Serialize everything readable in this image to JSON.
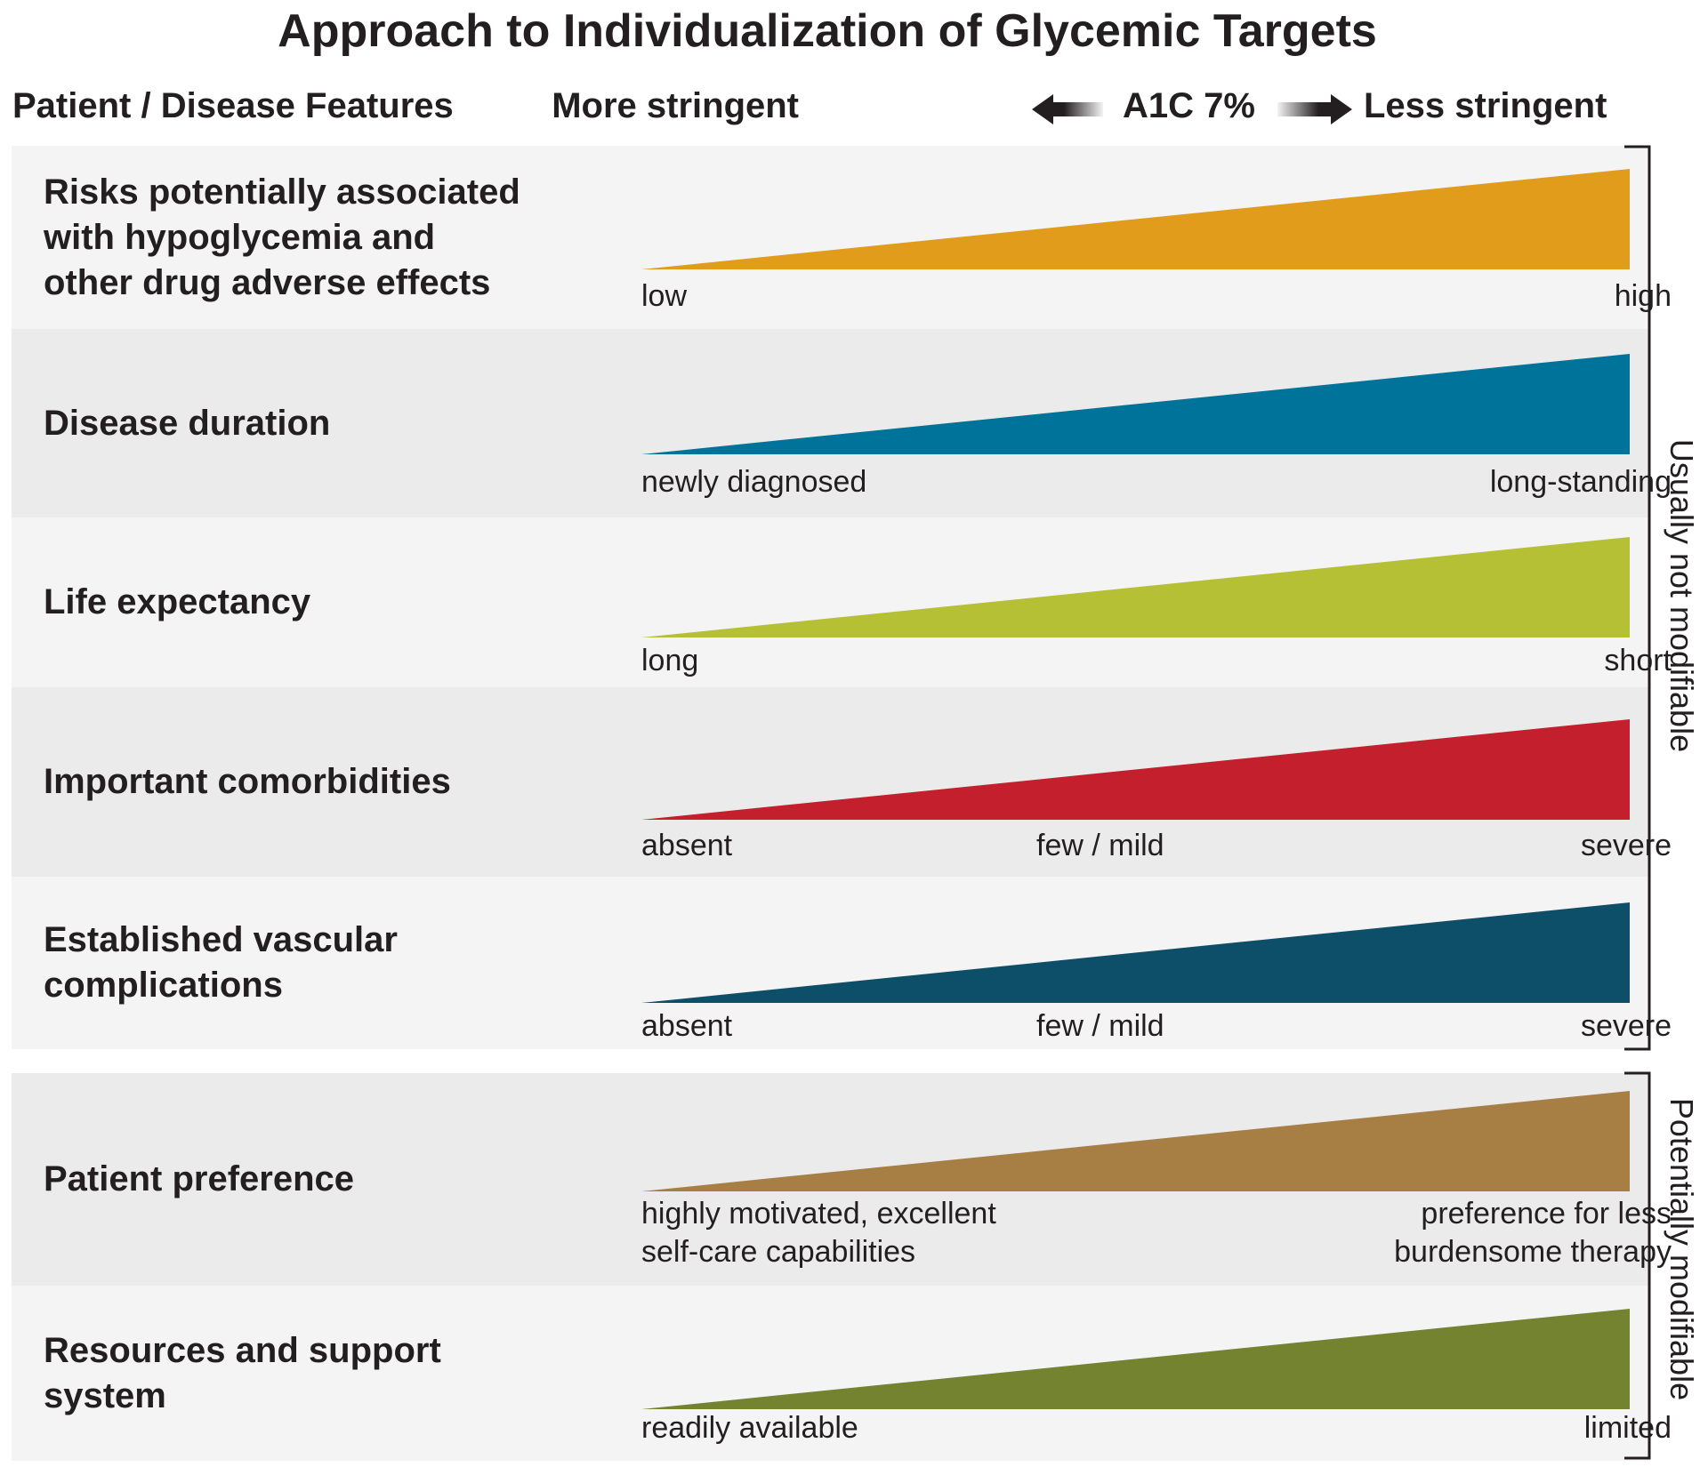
{
  "title": "Approach to Individualization of Glycemic Targets",
  "header": {
    "features_label": "Patient / Disease Features",
    "more_stringent": "More stringent",
    "a1c": "A1C 7%",
    "less_stringent": "Less stringent"
  },
  "groups": {
    "not_modifiable": "Usually not modifiable",
    "modifiable": "Potentially modifiable"
  },
  "rows": [
    {
      "lines": [
        "Risks potentially associated",
        "with hypoglycemia and",
        "other drug adverse effects"
      ],
      "scale_left": [
        "low"
      ],
      "scale_mid": [],
      "scale_right": [
        "high"
      ],
      "color": "#e09c1a"
    },
    {
      "lines": [
        "Disease duration"
      ],
      "scale_left": [
        "newly diagnosed"
      ],
      "scale_mid": [],
      "scale_right": [
        "long-standing"
      ],
      "color": "#00739a"
    },
    {
      "lines": [
        "Life expectancy"
      ],
      "scale_left": [
        "long"
      ],
      "scale_mid": [],
      "scale_right": [
        "short"
      ],
      "color": "#b5c034"
    },
    {
      "lines": [
        "Important comorbidities"
      ],
      "scale_left": [
        "absent"
      ],
      "scale_mid": [
        "few / mild"
      ],
      "scale_right": [
        "severe"
      ],
      "color": "#c41f2c"
    },
    {
      "lines": [
        "Established vascular",
        "complications"
      ],
      "scale_left": [
        "absent"
      ],
      "scale_mid": [
        "few / mild"
      ],
      "scale_right": [
        "severe"
      ],
      "color": "#0d4f68"
    },
    {
      "lines": [
        "Patient preference"
      ],
      "scale_left": [
        "highly motivated, excellent",
        "self-care capabilities"
      ],
      "scale_mid": [],
      "scale_right": [
        "preference for less",
        "burdensome therapy"
      ],
      "color": "#a77f44"
    },
    {
      "lines": [
        "Resources and support",
        "system"
      ],
      "scale_left": [
        "readily available"
      ],
      "scale_mid": [],
      "scale_right": [
        "limited"
      ],
      "color": "#74832f"
    }
  ]
}
